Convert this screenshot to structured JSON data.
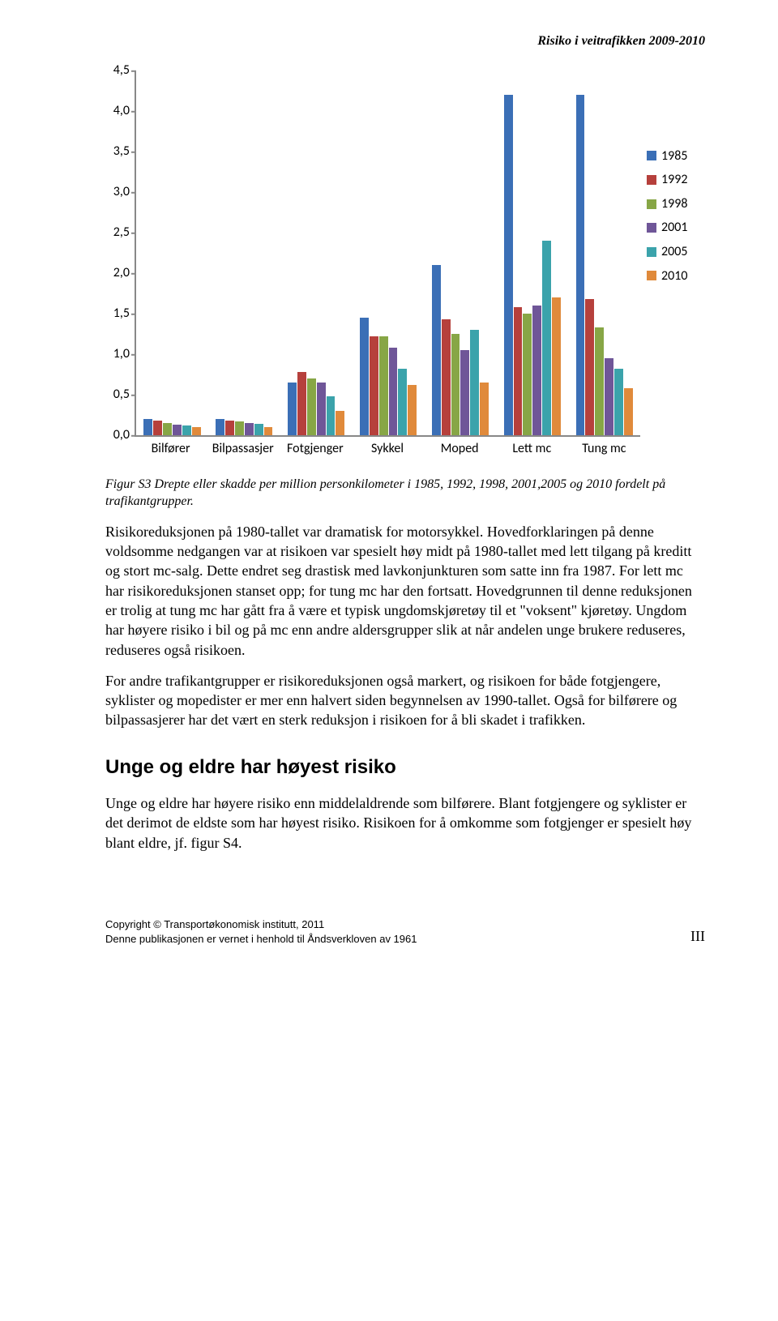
{
  "header": {
    "title": "Risiko i veitrafikken 2009-2010"
  },
  "chart": {
    "type": "grouped-bar",
    "ylim": [
      0.0,
      4.5
    ],
    "ytick_step": 0.5,
    "yticks": [
      "0,0",
      "0,5",
      "1,0",
      "1,5",
      "2,0",
      "2,5",
      "3,0",
      "3,5",
      "4,0",
      "4,5"
    ],
    "axis_color": "#888888",
    "categories": [
      "Bilfører",
      "Bilpassasjer",
      "Fotgjenger",
      "Sykkel",
      "Moped",
      "Lett mc",
      "Tung mc"
    ],
    "series": [
      {
        "name": "1985",
        "color": "#3b6fb6"
      },
      {
        "name": "1992",
        "color": "#b6403c"
      },
      {
        "name": "1998",
        "color": "#87a646"
      },
      {
        "name": "2001",
        "color": "#6f5698"
      },
      {
        "name": "2005",
        "color": "#3ba3ab"
      },
      {
        "name": "2010",
        "color": "#e08a3b"
      }
    ],
    "values": [
      [
        0.2,
        0.18,
        0.15,
        0.13,
        0.12,
        0.1
      ],
      [
        0.2,
        0.18,
        0.17,
        0.15,
        0.14,
        0.1
      ],
      [
        0.65,
        0.78,
        0.7,
        0.65,
        0.48,
        0.3
      ],
      [
        1.45,
        1.22,
        1.22,
        1.08,
        0.82,
        0.62
      ],
      [
        2.1,
        1.43,
        1.25,
        1.05,
        1.3,
        0.65
      ],
      [
        4.2,
        1.58,
        1.5,
        1.6,
        2.4,
        1.7
      ],
      [
        4.2,
        1.68,
        1.33,
        0.95,
        0.82,
        0.58
      ]
    ],
    "label_fontsize": 16,
    "background_color": "#ffffff"
  },
  "caption": "Figur S3 Drepte eller skadde per million personkilometer i 1985, 1992, 1998, 2001,2005 og 2010 fordelt på trafikantgrupper.",
  "paragraphs": [
    "Risikoreduksjonen på 1980-tallet var dramatisk for motorsykkel. Hovedforklaringen på denne voldsomme nedgangen var at risikoen var spesielt høy midt på 1980-tallet med lett tilgang på kreditt og stort mc-salg. Dette endret seg drastisk med lavkonjunkturen som satte inn fra 1987. For lett mc har risikoreduksjonen stanset opp; for tung mc har den fortsatt. Hovedgrunnen til denne reduksjonen er trolig at tung mc har gått fra å være et typisk ungdomskjøretøy til et \"voksent\" kjøretøy. Ungdom har høyere risiko i bil og på mc enn andre aldersgrupper slik at når andelen unge brukere reduseres, reduseres også risikoen.",
    "For andre trafikantgrupper er risikoreduksjonen også markert, og risikoen for både fotgjengere, syklister og mopedister er mer enn halvert siden begynnelsen av 1990-tallet. Også for bilførere og bilpassasjerer har det vært en sterk reduksjon i risikoen for å bli skadet i trafikken."
  ],
  "section_heading": "Unge og eldre har høyest risiko",
  "paragraphs2": [
    "Unge og eldre har høyere risiko enn middelaldrende som bilførere. Blant fotgjengere og syklister er det derimot de eldste som har høyest risiko. Risikoen for å omkomme som fotgjenger er spesielt høy blant eldre, jf. figur S4."
  ],
  "footer": {
    "line1": "Copyright © Transportøkonomisk institutt, 2011",
    "line2": "Denne publikasjonen er vernet i henhold til Åndsverkloven av 1961",
    "page": "III"
  }
}
